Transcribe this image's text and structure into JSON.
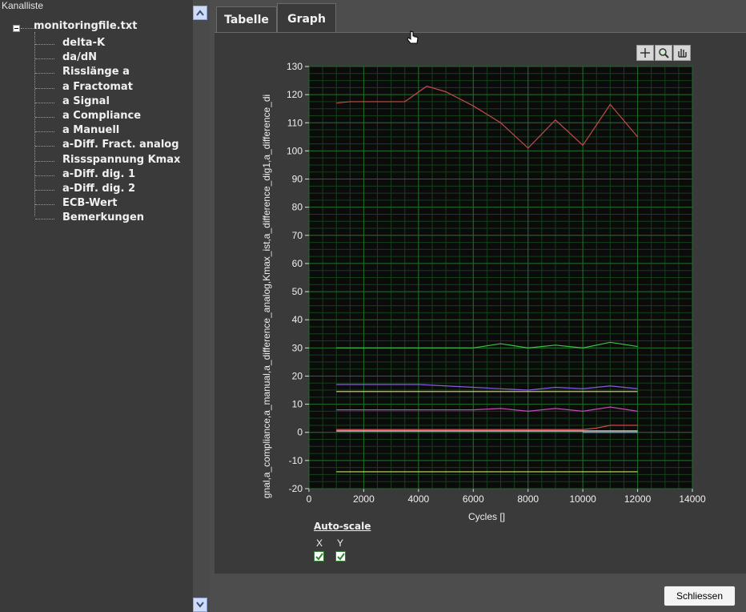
{
  "tree": {
    "title": "Kanalliste",
    "root_label": "monitoringfile.txt",
    "items": [
      {
        "label": "delta-K"
      },
      {
        "label": "da/dN"
      },
      {
        "label": "Risslänge a"
      },
      {
        "label": "a Fractomat"
      },
      {
        "label": "a Signal"
      },
      {
        "label": "a Compliance"
      },
      {
        "label": "a Manuell"
      },
      {
        "label": "a-Diff. Fract. analog"
      },
      {
        "label": "Rissspannung Kmax"
      },
      {
        "label": "a-Diff. dig. 1"
      },
      {
        "label": "a-Diff. dig. 2"
      },
      {
        "label": "ECB-Wert"
      },
      {
        "label": "Bemerkungen"
      }
    ]
  },
  "tabs": [
    {
      "label": "Tabelle",
      "active": false
    },
    {
      "label": "Graph",
      "active": true
    }
  ],
  "graph_toolbar": {
    "icons": [
      "crosshair-cursor-icon",
      "zoom-icon",
      "pan-hand-icon"
    ]
  },
  "auto_scale": {
    "label": "Auto-scale",
    "x_label": "X",
    "y_label": "Y",
    "x_checked": true,
    "y_checked": true
  },
  "buttons": {
    "close_label": "Schliessen"
  },
  "colors": {
    "plot_background": "#0b0b0b",
    "grid": "#1f6b28",
    "axis_text": "#f0f0f0"
  },
  "chart_data": {
    "type": "line",
    "xlabel": "Cycles []",
    "ylabel": "gnal,a_compliance,a_manual,a_difference_analog,Kmax_ist,a_difference_dig1,a_difference_di",
    "xlim": [
      0,
      14000
    ],
    "ylim": [
      -20,
      130
    ],
    "x_ticks": [
      0,
      2000,
      4000,
      6000,
      8000,
      10000,
      12000,
      14000
    ],
    "y_ticks": [
      -20,
      -10,
      0,
      10,
      20,
      30,
      40,
      50,
      60,
      70,
      80,
      90,
      100,
      110,
      120,
      130
    ],
    "grid": true,
    "series": [
      {
        "color": "#c24a4a",
        "x": [
          1000,
          1500,
          3500,
          4300,
          5000,
          6000,
          7000,
          8000,
          9000,
          10000,
          11000,
          12000
        ],
        "values": [
          117,
          117.5,
          117.5,
          123,
          121,
          116,
          110,
          101,
          111,
          102,
          116.5,
          105
        ]
      },
      {
        "color": "#3cc24a",
        "x": [
          1000,
          6000,
          7000,
          8000,
          9000,
          10000,
          11000,
          12000
        ],
        "values": [
          30,
          30,
          31.5,
          30,
          31,
          30,
          32,
          30.5
        ]
      },
      {
        "color": "#8a5ae0",
        "x": [
          1000,
          4000,
          6000,
          8000,
          9000,
          10000,
          11000,
          12000
        ],
        "values": [
          17,
          17,
          16,
          15,
          16,
          15.5,
          16.5,
          15.5
        ]
      },
      {
        "color": "#d8d8a0",
        "x": [
          1000,
          12000
        ],
        "values": [
          14.5,
          14.5
        ]
      },
      {
        "color": "#c24ab0",
        "x": [
          1000,
          6000,
          7000,
          8000,
          9000,
          10000,
          11000,
          12000
        ],
        "values": [
          8,
          8,
          8.5,
          7.5,
          8.5,
          7.5,
          9,
          7.5
        ]
      },
      {
        "color": "#e05050",
        "x": [
          1000,
          10000,
          10500,
          11000,
          12000
        ],
        "values": [
          1,
          1,
          1.5,
          2.5,
          2.5
        ]
      },
      {
        "color": "#f0f0f0",
        "x": [
          1000,
          12000
        ],
        "values": [
          0.5,
          0.5
        ]
      },
      {
        "color": "#6aaed6",
        "x": [
          10000,
          10500,
          12000
        ],
        "values": [
          0,
          0,
          0
        ]
      },
      {
        "color": "#c8e06a",
        "x": [
          1000,
          12000
        ],
        "values": [
          -14,
          -14
        ]
      }
    ]
  }
}
